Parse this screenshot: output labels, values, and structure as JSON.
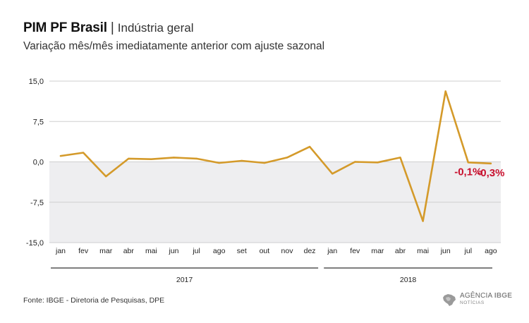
{
  "header": {
    "title": "PIM PF Brasil",
    "separator": "|",
    "title_suffix": "Indústria geral",
    "subtitle": "Variação mês/mês imediatamente anterior com ajuste sazonal"
  },
  "footer": {
    "source": "Fonte: IBGE - Diretoria de Pesquisas, DPE",
    "logo_line1_a": "AGÊNCIA",
    "logo_line1_b": "IBGE",
    "logo_line2": "NOTÍCIAS"
  },
  "colors": {
    "line": "#D49A2A",
    "negative_band": "#EEEEF0",
    "label_highlight": "#C8102E",
    "axis": "#333333"
  },
  "chart_data": {
    "type": "line",
    "title": "PIM PF Brasil | Indústria geral",
    "subtitle": "Variação mês/mês imediatamente anterior com ajuste sazonal",
    "categories": [
      "jan",
      "fev",
      "mar",
      "abr",
      "mai",
      "jun",
      "jul",
      "ago",
      "set",
      "out",
      "nov",
      "dez",
      "jan",
      "fev",
      "mar",
      "abr",
      "mai",
      "jun",
      "jul",
      "ago"
    ],
    "groups": [
      {
        "label": "2017",
        "start": 0,
        "end": 11
      },
      {
        "label": "2018",
        "start": 12,
        "end": 19
      }
    ],
    "series": [
      {
        "values": [
          1.1,
          1.7,
          -2.7,
          0.6,
          0.5,
          0.8,
          0.6,
          -0.2,
          0.2,
          -0.2,
          0.8,
          2.8,
          -2.2,
          0.0,
          -0.1,
          0.8,
          -11.0,
          13.1,
          -0.1,
          -0.3
        ]
      }
    ],
    "yticks": [
      "15,0",
      "7,5",
      "0,0",
      "-7,5",
      "-15,0"
    ],
    "ytick_values": [
      15,
      7.5,
      0,
      -7.5,
      -15
    ],
    "ylim": [
      -15,
      15
    ],
    "annotations": [
      {
        "index": 18,
        "text": "-0,1%"
      },
      {
        "index": 19,
        "text": "-0,3%"
      }
    ],
    "xlabel": "",
    "ylabel": "",
    "grid": true
  }
}
